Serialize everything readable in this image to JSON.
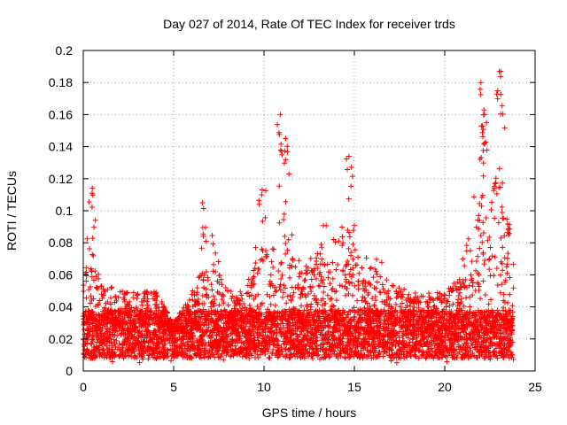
{
  "chart_data": {
    "type": "scatter",
    "title": "Day 027 of 2014, Rate Of TEC Index for receiver trds",
    "xlabel": "GPS time / hours",
    "ylabel": "ROTI / TECUs",
    "xlim": [
      0,
      25
    ],
    "ylim": [
      0,
      0.2
    ],
    "grid": true,
    "marker": "+",
    "color": "#ff0000",
    "x_ticks": [
      "0",
      "5",
      "10",
      "15",
      "20",
      "25"
    ],
    "y_ticks": [
      "0",
      "0.02",
      "0.04",
      "0.06",
      "0.08",
      "0.1",
      "0.12",
      "0.14",
      "0.16",
      "0.18",
      "0.2"
    ],
    "series": [
      {
        "name": "ROTI",
        "envelope_x": [
          0,
          0.5,
          1,
          2,
          3,
          4,
          5,
          6,
          7,
          8,
          9,
          9.5,
          10,
          10.5,
          11,
          11.5,
          12,
          13,
          14,
          14.5,
          15,
          15.5,
          16,
          17,
          18,
          19,
          20,
          20.5,
          21,
          21.5,
          22,
          22.5,
          23,
          23.5,
          23.8
        ],
        "envelope_upper": [
          0.07,
          0.1,
          0.06,
          0.05,
          0.05,
          0.05,
          0.03,
          0.05,
          0.09,
          0.05,
          0.05,
          0.1,
          0.11,
          0.08,
          0.16,
          0.09,
          0.07,
          0.1,
          0.08,
          0.13,
          0.11,
          0.07,
          0.08,
          0.06,
          0.05,
          0.05,
          0.05,
          0.06,
          0.07,
          0.1,
          0.16,
          0.18,
          0.19,
          0.14,
          0.1
        ],
        "envelope_lower": [
          0.005,
          0.005,
          0.005,
          0.005,
          0.005,
          0.005,
          0.005,
          0.005,
          0.005,
          0.005,
          0.005,
          0.005,
          0.005,
          0.005,
          0.005,
          0.005,
          0.005,
          0.005,
          0.005,
          0.005,
          0.005,
          0.005,
          0.005,
          0.005,
          0.005,
          0.005,
          0.005,
          0.005,
          0.005,
          0.005,
          0.005,
          0.005,
          0.005,
          0.005,
          0.005
        ],
        "peaks": [
          {
            "x": 0.5,
            "y": 0.114
          },
          {
            "x": 6.6,
            "y": 0.105
          },
          {
            "x": 9.9,
            "y": 0.113
          },
          {
            "x": 10.9,
            "y": 0.16
          },
          {
            "x": 11.2,
            "y": 0.145
          },
          {
            "x": 14.7,
            "y": 0.134
          },
          {
            "x": 22.0,
            "y": 0.18
          },
          {
            "x": 22.2,
            "y": 0.16
          },
          {
            "x": 23.1,
            "y": 0.187
          }
        ]
      }
    ]
  }
}
